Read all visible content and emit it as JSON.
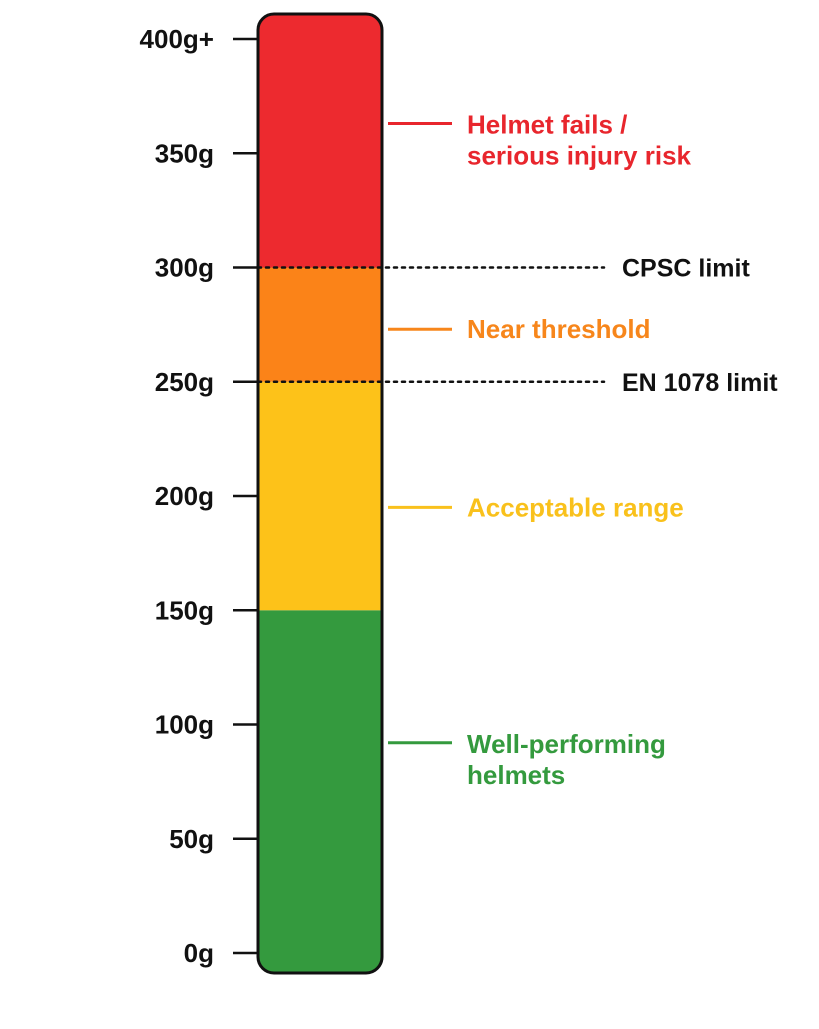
{
  "chart_data": {
    "type": "bar",
    "orientation": "vertical-scale",
    "unit": "g",
    "ylim": [
      0,
      400
    ],
    "ticks": [
      {
        "value": 0,
        "label": "0g"
      },
      {
        "value": 50,
        "label": "50g"
      },
      {
        "value": 100,
        "label": "100g"
      },
      {
        "value": 150,
        "label": "150g"
      },
      {
        "value": 200,
        "label": "200g"
      },
      {
        "value": 250,
        "label": "250g"
      },
      {
        "value": 300,
        "label": "300g"
      },
      {
        "value": 350,
        "label": "350g"
      },
      {
        "value": 400,
        "label": "400g+"
      }
    ],
    "bands": [
      {
        "from": 0,
        "to": 150,
        "color": "#349a3e"
      },
      {
        "from": 150,
        "to": 250,
        "color": "#fdc219"
      },
      {
        "from": 250,
        "to": 300,
        "color": "#fb8318"
      },
      {
        "from": 300,
        "to": 400,
        "color": "#ed2a2f"
      }
    ],
    "annotations": [
      {
        "value": 363,
        "lines": [
          "Helmet fails /",
          "serious injury risk"
        ],
        "color": "#e8262d"
      },
      {
        "value": 273,
        "lines": [
          "Near threshold"
        ],
        "color": "#f7861b"
      },
      {
        "value": 195,
        "lines": [
          "Acceptable range"
        ],
        "color": "#f9c11c"
      },
      {
        "value": 92,
        "lines": [
          "Well-performing",
          "helmets"
        ],
        "color": "#349a3e"
      }
    ],
    "thresholds": [
      {
        "value": 300,
        "label": "CPSC limit"
      },
      {
        "value": 250,
        "label": "EN 1078 limit"
      }
    ]
  }
}
